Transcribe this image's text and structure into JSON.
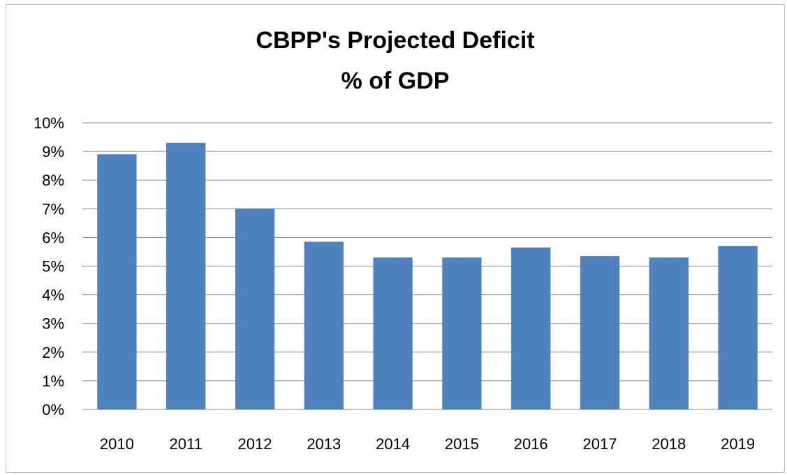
{
  "chart_data": {
    "type": "bar",
    "title": "CBPP's Projected Deficit",
    "subtitle": "% of GDP",
    "categories": [
      "2010",
      "2011",
      "2012",
      "2013",
      "2014",
      "2015",
      "2016",
      "2017",
      "2018",
      "2019"
    ],
    "values": [
      8.9,
      9.3,
      7.0,
      5.85,
      5.3,
      5.3,
      5.65,
      5.35,
      5.3,
      5.7
    ],
    "value_unit": "% of GDP",
    "ylim": [
      0,
      10
    ],
    "y_ticks": [
      0,
      1,
      2,
      3,
      4,
      5,
      6,
      7,
      8,
      9,
      10
    ],
    "y_tick_labels": [
      "0%",
      "1%",
      "2%",
      "3%",
      "4%",
      "5%",
      "6%",
      "7%",
      "8%",
      "9%",
      "10%"
    ],
    "xlabel": "",
    "ylabel": "",
    "grid": true,
    "legend": "none",
    "bar_color": "#4f81bd",
    "grid_color": "#868686"
  }
}
